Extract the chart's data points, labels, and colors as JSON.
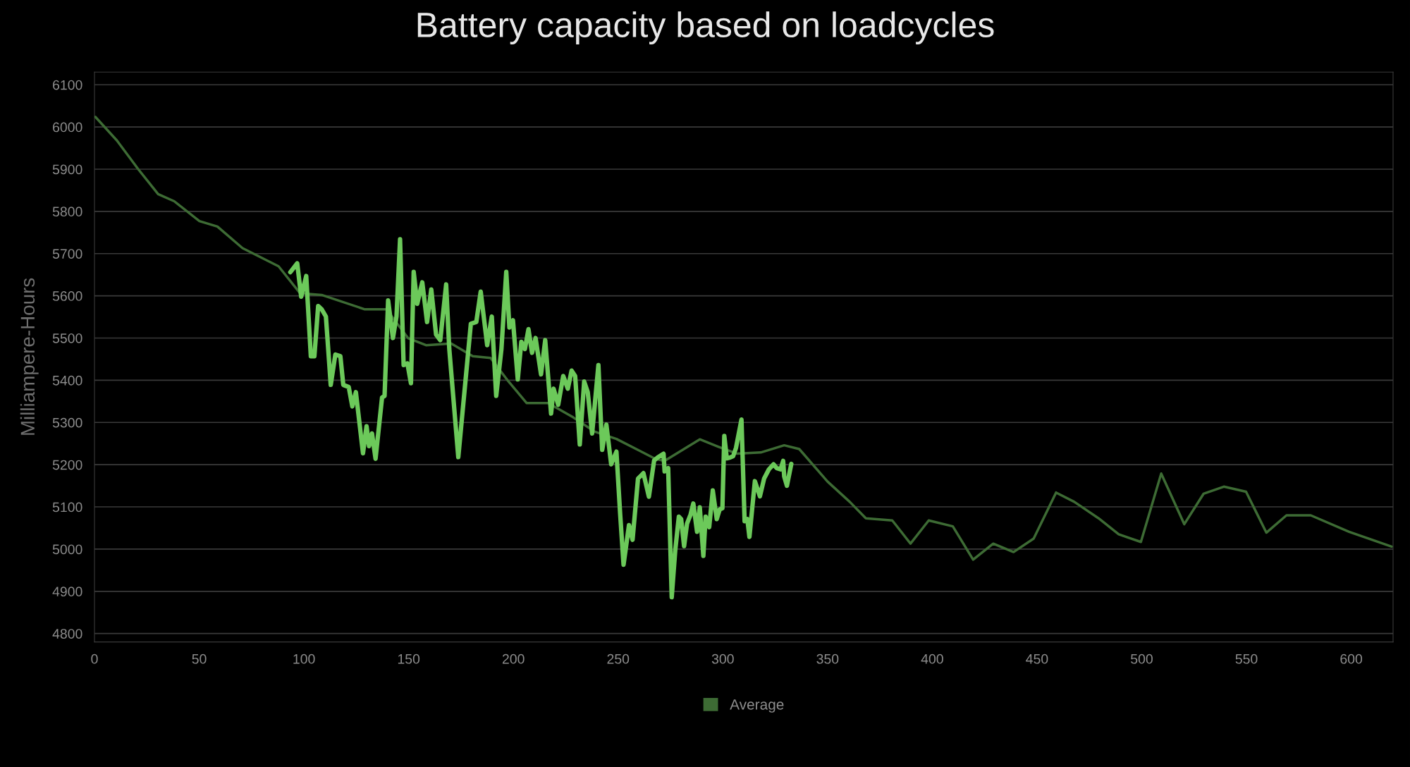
{
  "chart_data": {
    "type": "line",
    "title": "Battery capacity based on loadcycles",
    "ylabel": "Milliampere-Hours",
    "xlim": [
      0,
      620
    ],
    "xticks": [
      0,
      50,
      100,
      150,
      200,
      250,
      300,
      350,
      400,
      450,
      500,
      550,
      600
    ],
    "ylim": [
      4780,
      6130
    ],
    "yticks": [
      4800,
      4900,
      5000,
      5100,
      5200,
      5300,
      5400,
      5500,
      5600,
      5700,
      5800,
      5900,
      6000,
      6100
    ],
    "grid": "y",
    "legend": "bottom",
    "marker": "none",
    "line_style": "solid",
    "series": [
      {
        "name": "Average",
        "color": "#3d6b34",
        "x": [
          0.4,
          10.7,
          20.9,
          30.4,
          38.1,
          50.1,
          58.7,
          70.7,
          87.9,
          98.2,
          108.5,
          129.1,
          139.4,
          149.7,
          158.3,
          170.3,
          180.6,
          189.1,
          197.7,
          206.3,
          216.6,
          228.6,
          238.9,
          249.2,
          259.5,
          267.7,
          272.2,
          289.0,
          299.1,
          306.9,
          318.1,
          329.3,
          336.5,
          350.0,
          360.6,
          368.3,
          380.9,
          389.6,
          398.3,
          409.8,
          419.5,
          429.1,
          438.8,
          448.4,
          459.1,
          467.8,
          479.4,
          489.0,
          499.6,
          509.3,
          520.3,
          529.5,
          539.2,
          549.8,
          559.5,
          569.1,
          580.7,
          599.0,
          619.3
        ],
        "values": [
          6024,
          5968,
          5900,
          5841,
          5824,
          5777,
          5764,
          5713,
          5670,
          5606,
          5602,
          5568,
          5568,
          5500,
          5483,
          5487,
          5457,
          5453,
          5397,
          5346,
          5346,
          5312,
          5278,
          5261,
          5235,
          5214,
          5209,
          5260,
          5240,
          5226,
          5229,
          5246,
          5237,
          5160,
          5112,
          5073,
          5068,
          5013,
          5068,
          5054,
          4975,
          5013,
          4993,
          5025,
          5134,
          5112,
          5073,
          5035,
          5017,
          5179,
          5059,
          5131,
          5148,
          5136,
          5039,
          5080,
          5080,
          5041,
          5006
        ]
      },
      {
        "color": "#6cc95a",
        "x": [
          93.5,
          96.8,
          98.7,
          101.1,
          103.3,
          105.0,
          106.8,
          108.5,
          110.5,
          112.8,
          115.0,
          117.4,
          118.8,
          121.4,
          123.1,
          124.8,
          128.2,
          129.9,
          131.1,
          132.5,
          134.2,
          137.3,
          138.5,
          140.2,
          142.5,
          144.2,
          145.9,
          147.6,
          149.4,
          151.1,
          152.4,
          154.1,
          156.5,
          158.8,
          160.8,
          163.1,
          165.1,
          167.9,
          169.4,
          173.7,
          179.7,
          182.3,
          184.4,
          187.5,
          189.7,
          191.8,
          194.3,
          196.6,
          198.1,
          199.8,
          202.1,
          203.8,
          205.5,
          207.2,
          208.9,
          210.6,
          213.2,
          215.2,
          218.0,
          219.2,
          221.4,
          223.8,
          226.0,
          227.8,
          229.5,
          231.7,
          233.8,
          235.5,
          237.6,
          240.6,
          242.4,
          244.4,
          246.7,
          249.2,
          251.0,
          252.6,
          255.2,
          256.9,
          259.5,
          262.1,
          264.7,
          267.2,
          268.9,
          271.7,
          272.2,
          273.9,
          275.6,
          277.3,
          279.0,
          280.1,
          281.5,
          282.9,
          284.6,
          285.9,
          287.7,
          289.0,
          290.7,
          291.8,
          293.5,
          295.2,
          297.1,
          298.5,
          299.8,
          300.7,
          301.9,
          303.5,
          304.9,
          306.3,
          308.9,
          310.4,
          311.7,
          312.7,
          315.3,
          317.7,
          319.7,
          322.0,
          324.2,
          325.7,
          327.6,
          328.8,
          329.3,
          330.6,
          332.7
        ],
        "values": [
          5656,
          5677,
          5598,
          5647,
          5457,
          5457,
          5576,
          5568,
          5551,
          5389,
          5461,
          5457,
          5389,
          5384,
          5338,
          5372,
          5227,
          5291,
          5244,
          5274,
          5214,
          5359,
          5363,
          5589,
          5500,
          5551,
          5734,
          5436,
          5440,
          5393,
          5657,
          5581,
          5632,
          5538,
          5615,
          5508,
          5495,
          5627,
          5474,
          5218,
          5534,
          5538,
          5610,
          5483,
          5551,
          5363,
          5474,
          5657,
          5525,
          5542,
          5402,
          5491,
          5474,
          5521,
          5465,
          5500,
          5414,
          5495,
          5321,
          5380,
          5342,
          5410,
          5380,
          5423,
          5410,
          5248,
          5397,
          5372,
          5274,
          5436,
          5235,
          5295,
          5201,
          5231,
          5082,
          4963,
          5057,
          5022,
          5167,
          5180,
          5124,
          5210,
          5217,
          5226,
          5184,
          5192,
          4886,
          4998,
          5077,
          5071,
          5007,
          5060,
          5082,
          5108,
          5041,
          5099,
          4984,
          5077,
          5052,
          5139,
          5071,
          5094,
          5097,
          5268,
          5215,
          5217,
          5220,
          5240,
          5307,
          5066,
          5071,
          5029,
          5161,
          5125,
          5167,
          5189,
          5201,
          5192,
          5189,
          5209,
          5172,
          5150,
          5202
        ]
      }
    ]
  }
}
